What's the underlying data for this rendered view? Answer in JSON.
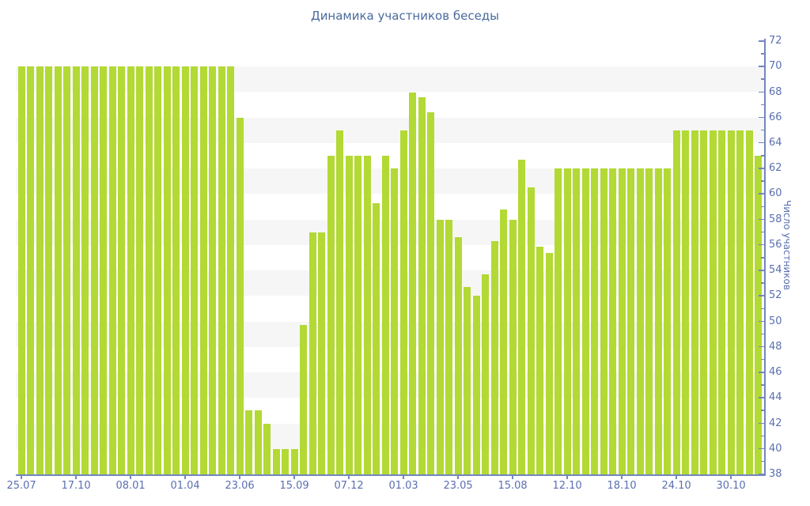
{
  "colors": {
    "bar": "#b3d935",
    "axis": "#7287bd",
    "tick_label": "#5b6fb0",
    "title": "#4a6b9c",
    "stripe": "#f6f6f7",
    "background": "#ffffff"
  },
  "chart_data": {
    "type": "bar",
    "title": "Динамика участников беседы",
    "ylabel": "Число участников",
    "xlabel": "",
    "ylim": [
      38,
      72
    ],
    "y_ticks": [
      38,
      40,
      42,
      44,
      46,
      48,
      50,
      52,
      54,
      56,
      58,
      60,
      62,
      64,
      66,
      68,
      70,
      72
    ],
    "y_minor_tick_step": 1,
    "grid": "zebra-stripes",
    "stripe_bands_start": 40,
    "stripe_bands_step": 4,
    "legend": "none",
    "x_tick_label_every": 6,
    "x_labels": [
      "25.07",
      "17.10",
      "08.01",
      "01.04",
      "23.06",
      "15.09",
      "07.12",
      "01.03",
      "23.05",
      "15.08",
      "12.10",
      "18.10",
      "24.10",
      "30.10"
    ],
    "values": [
      70,
      70,
      70,
      70,
      70,
      70,
      70,
      70,
      70,
      70,
      70,
      70,
      70,
      70,
      70,
      70,
      70,
      70,
      70,
      70,
      70,
      70,
      70,
      70,
      66,
      43,
      43,
      42,
      40,
      40,
      40,
      49.7,
      57,
      57,
      63,
      65,
      63,
      63,
      63,
      59.3,
      63,
      62,
      65,
      68,
      67.6,
      66.4,
      58,
      58,
      56.6,
      52.7,
      52,
      53.7,
      56.3,
      58.8,
      58,
      62.7,
      60.5,
      55.9,
      55.4,
      62,
      62,
      62,
      62,
      62,
      62,
      62,
      62,
      62,
      62,
      62,
      62,
      62,
      65,
      65,
      65,
      65,
      65,
      65,
      65,
      65,
      65,
      63
    ]
  }
}
